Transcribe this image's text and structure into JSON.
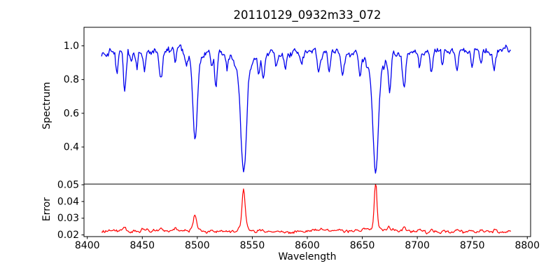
{
  "figure": {
    "title": "20110129_0932m33_072",
    "xlabel": "Wavelength",
    "background_color": "#ffffff",
    "spine_color": "#000000"
  },
  "chart_data": [
    {
      "type": "line",
      "subplot": "spectrum",
      "ylabel": "Spectrum",
      "line_color": "#0000ee",
      "legend": "none",
      "grid": false,
      "xlim": [
        8397,
        8803
      ],
      "ylim": [
        0.18,
        1.11
      ],
      "yticks": [
        0.4,
        0.6,
        0.8,
        1.0
      ],
      "x_start": 8413,
      "x_end": 8785.5,
      "x_step": 0.75,
      "seed": 13,
      "continuum_level": 0.962,
      "noise_sigma": 0.0105,
      "absorption_lines": [
        {
          "center": 8427.0,
          "depth": 0.13,
          "width_sigma": 1.0
        },
        {
          "center": 8434.0,
          "depth": 0.24,
          "width_sigma": 1.1
        },
        {
          "center": 8440.0,
          "depth": 0.07,
          "width_sigma": 0.9
        },
        {
          "center": 8445.0,
          "depth": 0.1,
          "width_sigma": 1.0
        },
        {
          "center": 8452.0,
          "depth": 0.11,
          "width_sigma": 1.1
        },
        {
          "center": 8467.0,
          "depth": 0.15,
          "width_sigma": 1.4
        },
        {
          "center": 8480.0,
          "depth": 0.08,
          "width_sigma": 0.9
        },
        {
          "center": 8490.0,
          "depth": 0.06,
          "width_sigma": 0.9
        },
        {
          "center": 8498.02,
          "depth": 0.44,
          "width_sigma": 1.9
        },
        {
          "center": 8498.02,
          "depth": 0.09,
          "width_sigma": 5.0
        },
        {
          "center": 8513.0,
          "depth": 0.1,
          "width_sigma": 1.0
        },
        {
          "center": 8517.0,
          "depth": 0.19,
          "width_sigma": 1.2
        },
        {
          "center": 8527.0,
          "depth": 0.1,
          "width_sigma": 0.9
        },
        {
          "center": 8542.09,
          "depth": 0.6,
          "width_sigma": 2.4
        },
        {
          "center": 8542.09,
          "depth": 0.11,
          "width_sigma": 7.0
        },
        {
          "center": 8556.0,
          "depth": 0.12,
          "width_sigma": 1.0
        },
        {
          "center": 8560.0,
          "depth": 0.15,
          "width_sigma": 1.1
        },
        {
          "center": 8572.0,
          "depth": 0.07,
          "width_sigma": 0.9
        },
        {
          "center": 8580.0,
          "depth": 0.1,
          "width_sigma": 1.1
        },
        {
          "center": 8595.0,
          "depth": 0.09,
          "width_sigma": 1.0
        },
        {
          "center": 8610.0,
          "depth": 0.12,
          "width_sigma": 1.1
        },
        {
          "center": 8620.0,
          "depth": 0.11,
          "width_sigma": 1.0
        },
        {
          "center": 8632.0,
          "depth": 0.13,
          "width_sigma": 1.2
        },
        {
          "center": 8648.0,
          "depth": 0.1,
          "width_sigma": 1.0
        },
        {
          "center": 8662.14,
          "depth": 0.59,
          "width_sigma": 2.3
        },
        {
          "center": 8662.14,
          "depth": 0.11,
          "width_sigma": 6.5
        },
        {
          "center": 8675.0,
          "depth": 0.2,
          "width_sigma": 1.2
        },
        {
          "center": 8688.0,
          "depth": 0.23,
          "width_sigma": 1.4
        },
        {
          "center": 8702.0,
          "depth": 0.08,
          "width_sigma": 0.9
        },
        {
          "center": 8713.0,
          "depth": 0.13,
          "width_sigma": 1.1
        },
        {
          "center": 8723.0,
          "depth": 0.09,
          "width_sigma": 0.9
        },
        {
          "center": 8736.0,
          "depth": 0.11,
          "width_sigma": 1.1
        },
        {
          "center": 8750.0,
          "depth": 0.09,
          "width_sigma": 1.0
        },
        {
          "center": 8758.0,
          "depth": 0.09,
          "width_sigma": 0.9
        },
        {
          "center": 8770.0,
          "depth": 0.1,
          "width_sigma": 1.1
        }
      ]
    },
    {
      "type": "line",
      "subplot": "error",
      "ylabel": "Error",
      "xlabel": "Wavelength",
      "line_color": "#ff0000",
      "legend": "none",
      "grid": false,
      "xlim": [
        8397,
        8803
      ],
      "ylim": [
        0.019,
        0.0504
      ],
      "yticks": [
        0.02,
        0.03,
        0.04,
        0.05
      ],
      "xticks": [
        8400,
        8450,
        8500,
        8550,
        8600,
        8650,
        8700,
        8750,
        8800
      ],
      "x_start": 8413,
      "x_end": 8785.5,
      "x_step": 0.75,
      "seed": 29,
      "baseline_level": 0.0222,
      "noise_sigma": 0.00042,
      "error_peaks": [
        {
          "center": 8434.0,
          "height": 0.0022,
          "width_sigma": 1.2
        },
        {
          "center": 8450.0,
          "height": 0.0008,
          "width_sigma": 1.5
        },
        {
          "center": 8467.0,
          "height": 0.0012,
          "width_sigma": 1.2
        },
        {
          "center": 8480.0,
          "height": 0.0015,
          "width_sigma": 1.2
        },
        {
          "center": 8498.0,
          "height": 0.0088,
          "width_sigma": 1.4
        },
        {
          "center": 8498.0,
          "height": 0.0012,
          "width_sigma": 4.0
        },
        {
          "center": 8513.0,
          "height": 0.0012,
          "width_sigma": 1.0
        },
        {
          "center": 8542.1,
          "height": 0.0225,
          "width_sigma": 1.4
        },
        {
          "center": 8542.1,
          "height": 0.003,
          "width_sigma": 4.0
        },
        {
          "center": 8557.0,
          "height": 0.001,
          "width_sigma": 1.0
        },
        {
          "center": 8605.0,
          "height": 0.0006,
          "width_sigma": 1.5
        },
        {
          "center": 8652.0,
          "height": 0.0012,
          "width_sigma": 1.0
        },
        {
          "center": 8662.1,
          "height": 0.0278,
          "width_sigma": 1.1
        },
        {
          "center": 8662.1,
          "height": 0.003,
          "width_sigma": 4.0
        },
        {
          "center": 8674.0,
          "height": 0.0022,
          "width_sigma": 1.2
        },
        {
          "center": 8688.0,
          "height": 0.002,
          "width_sigma": 1.3
        },
        {
          "center": 8702.0,
          "height": 0.0012,
          "width_sigma": 1.0
        },
        {
          "center": 8713.0,
          "height": 0.0022,
          "width_sigma": 1.0
        },
        {
          "center": 8724.0,
          "height": 0.001,
          "width_sigma": 1.0
        },
        {
          "center": 8736.0,
          "height": 0.0014,
          "width_sigma": 1.0
        },
        {
          "center": 8758.0,
          "height": 0.001,
          "width_sigma": 1.2
        },
        {
          "center": 8770.0,
          "height": 0.0012,
          "width_sigma": 1.2
        }
      ]
    }
  ]
}
